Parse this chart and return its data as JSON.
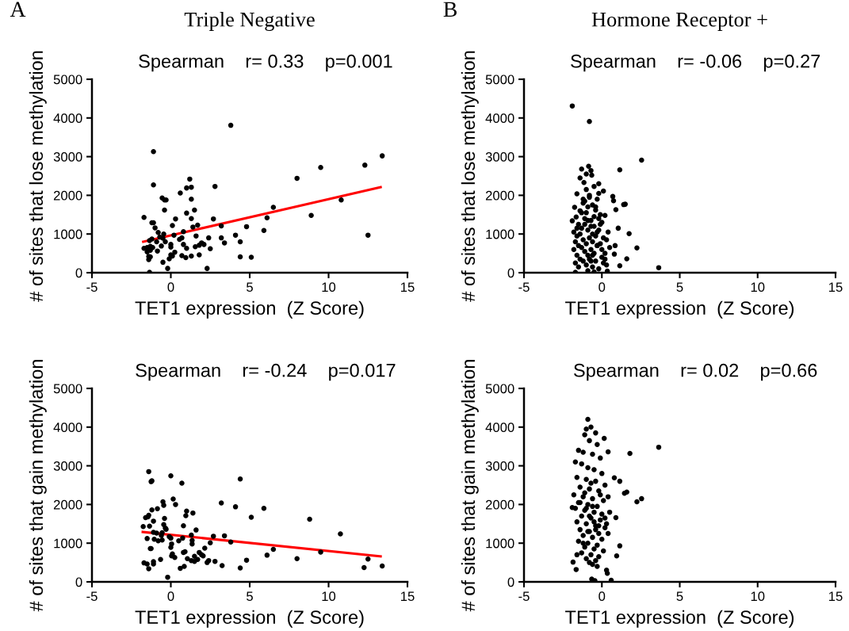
{
  "chart_data": [
    {
      "type": "scatter",
      "title": "Triple Negative",
      "xlabel": "TET1 expression  (Z Score)",
      "ylabel": "# of sites that lose methylation",
      "annotations": [
        "A",
        "Spearman    r= 0.33    p=0.001"
      ],
      "xlim": [
        -5,
        15
      ],
      "ylim": [
        0,
        5000
      ],
      "xticks": [
        -5,
        0,
        5,
        10,
        15
      ],
      "yticks": [
        0,
        1000,
        2000,
        3000,
        4000,
        5000
      ],
      "marker": "circle",
      "grid": false,
      "legend": false,
      "series": [
        {
          "color": "#000000",
          "x": [
            3.8,
            -1.1,
            13.4,
            12.3,
            9.5,
            8.0,
            1.2,
            -1.1,
            2.8,
            1.0,
            1.3,
            0.6,
            -0.55,
            -0.4,
            -0.3,
            1.3,
            10.8,
            -0.4,
            1.5,
            6.5,
            1.0,
            -1.7,
            0.3,
            1.3,
            2.7,
            6.1,
            8.9,
            -1.2,
            -1.1,
            0.1,
            1.4,
            1.7,
            3.2,
            4.8,
            -1.0,
            -0.8,
            5.9,
            -0.45,
            0.8,
            0.2,
            1.6,
            4.1,
            -0.7,
            -0.5,
            2.4,
            3.2,
            0.55,
            0.7,
            -1.35,
            -1.2,
            -0.9,
            -0.35,
            4.4,
            12.5,
            3.4,
            0.0,
            0.0,
            0.8,
            1.95,
            2.1,
            1.55,
            1.8,
            -0.6,
            -1.7,
            -1.5,
            -1.3,
            -1.15,
            1.0,
            2.5,
            -1.5,
            -1.3,
            -0.85,
            0.25,
            0.0,
            0.1,
            0.7,
            0.95,
            1.3,
            1.8,
            -1.4,
            -1.3,
            4.4,
            5.1,
            -1.4,
            -0.1,
            -0.5,
            -0.2,
            2.3,
            -1.35
          ],
          "values": [
            3810,
            3130,
            3020,
            2780,
            2720,
            2440,
            2420,
            2270,
            2230,
            2190,
            2210,
            2060,
            1930,
            1880,
            1880,
            1900,
            1880,
            1620,
            1620,
            1690,
            1540,
            1430,
            1390,
            1400,
            1390,
            1420,
            1480,
            1290,
            1290,
            1220,
            1180,
            1230,
            1210,
            1190,
            1160,
            1040,
            1090,
            1000,
            1060,
            970,
            950,
            970,
            920,
            890,
            900,
            900,
            860,
            900,
            830,
            870,
            800,
            800,
            800,
            970,
            770,
            730,
            660,
            730,
            770,
            730,
            670,
            710,
            690,
            630,
            650,
            680,
            650,
            630,
            620,
            540,
            580,
            560,
            530,
            460,
            430,
            440,
            390,
            430,
            460,
            420,
            410,
            410,
            400,
            340,
            360,
            270,
            110,
            110,
            10
          ]
        },
        {
          "type": "line",
          "marker": "none",
          "color": "#ff0000",
          "x": [
            -1.75,
            13.3
          ],
          "values": [
            800,
            2210
          ]
        }
      ]
    },
    {
      "type": "scatter",
      "xlabel": "TET1 expression  (Z Score)",
      "ylabel": "# of sites that gain methylation",
      "annotations": [
        "Spearman    r= -0.24    p=0.017"
      ],
      "xlim": [
        -5,
        15
      ],
      "ylim": [
        0,
        5000
      ],
      "xticks": [
        -5,
        0,
        5,
        10,
        15
      ],
      "yticks": [
        0,
        1000,
        2000,
        3000,
        4000,
        5000
      ],
      "marker": "circle",
      "grid": false,
      "legend": false,
      "series": [
        {
          "color": "#000000",
          "x": [
            -1.4,
            0.0,
            -1.25,
            -1.2,
            0.7,
            4.4,
            0.15,
            0.3,
            -0.5,
            -0.45,
            3.2,
            4.1,
            5.9,
            -1.2,
            -0.85,
            1.0,
            1.4,
            -1.4,
            -1.6,
            -1.45,
            0.95,
            5.1,
            -0.4,
            -1.1,
            8.8,
            -1.75,
            -1.35,
            -0.45,
            0.8,
            -0.35,
            -0.3,
            1.6,
            -1.1,
            -0.9,
            -0.55,
            10.75,
            1.3,
            -0.6,
            -0.1,
            0.0,
            2.7,
            3.4,
            -1.5,
            -1.05,
            -0.8,
            -0.55,
            0.5,
            0.75,
            1.35,
            1.35,
            2.5,
            3.8,
            0.05,
            0.0,
            -1.3,
            -1.25,
            2.15,
            6.5,
            0.8,
            0.9,
            1.8,
            9.5,
            0.1,
            0.25,
            0.05,
            1.95,
            2.05,
            6.1,
            1.5,
            -0.65,
            1.05,
            1.3,
            1.5,
            1.7,
            8.0,
            12.5,
            2.4,
            2.3,
            2.8,
            4.8,
            -1.7,
            -1.5,
            -1.1,
            -1.1,
            3.25,
            0.85,
            0.6,
            4.4,
            12.25,
            13.4,
            -1.4,
            -0.2
          ],
          "values": [
            2850,
            2740,
            2590,
            2610,
            2550,
            2660,
            2140,
            2000,
            2070,
            1980,
            2040,
            1940,
            1900,
            1860,
            1890,
            1830,
            1780,
            1720,
            1660,
            1680,
            1710,
            1670,
            1640,
            1570,
            1620,
            1430,
            1440,
            1480,
            1450,
            1390,
            1360,
            1340,
            1280,
            1260,
            1270,
            1240,
            1210,
            1200,
            1170,
            1130,
            1180,
            1190,
            1120,
            1100,
            1060,
            1080,
            1060,
            1130,
            1070,
            980,
            1010,
            1030,
            980,
            890,
            860,
            860,
            870,
            840,
            760,
            780,
            760,
            770,
            720,
            630,
            670,
            700,
            670,
            690,
            660,
            580,
            600,
            550,
            530,
            580,
            600,
            590,
            550,
            500,
            530,
            560,
            490,
            460,
            520,
            460,
            420,
            400,
            350,
            360,
            370,
            410,
            340,
            120
          ]
        },
        {
          "type": "line",
          "marker": "none",
          "color": "#ff0000",
          "x": [
            -1.78,
            13.3
          ],
          "values": [
            1290,
            660
          ]
        }
      ]
    },
    {
      "type": "scatter",
      "title": "Hormone Receptor +",
      "xlabel": "TET1 expression  (Z Score)",
      "ylabel": "# of sites that lose methylation",
      "annotations": [
        "B",
        "Spearman    r= -0.06    p=0.27"
      ],
      "xlim": [
        -5,
        15
      ],
      "ylim": [
        0,
        5000
      ],
      "xticks": [
        -5,
        0,
        5,
        10,
        15
      ],
      "yticks": [
        0,
        1000,
        2000,
        3000,
        4000,
        5000
      ],
      "marker": "circle",
      "grid": false,
      "legend": false,
      "series": [
        {
          "color": "#000000",
          "x": [
            -1.9,
            -0.8,
            2.55,
            1.15,
            3.65,
            1.75,
            2.25,
            1.6,
            1.15,
            1.4,
            1.5,
            0.9,
            1.05,
            0.85,
            0.8,
            0.7,
            0.75,
            0.1,
            -0.2,
            -1.7,
            0.35,
            -0.85,
            -1.3,
            -0.7,
            -0.65,
            -1.4,
            -1.0,
            -1.15,
            -0.5,
            -1.6,
            -0.8,
            -1.75,
            -1.9,
            -1.65,
            -1.2,
            -0.9,
            -0.6,
            -0.3,
            -1.5,
            -1.0,
            -0.4,
            -0.1,
            -1.8,
            -1.3,
            -0.7,
            -0.2,
            0.2,
            -1.6,
            -1.1,
            -0.5,
            0.0,
            0.4,
            -1.7,
            -1.4,
            -0.9,
            -0.6,
            -0.2,
            0.1,
            -1.5,
            -1.2,
            -0.8,
            -0.4,
            0.3,
            -1.8,
            -1.3,
            -1.0,
            -0.6,
            -0.1,
            0.5,
            -1.6,
            -1.1,
            -0.7,
            -0.3,
            0.2,
            -1.4,
            -0.9,
            -0.5,
            0.0,
            -1.7,
            -1.2,
            -0.8,
            -0.4,
            0.1,
            -1.5,
            -1.0,
            -0.6,
            -0.2,
            0.3,
            -1.3,
            -0.9,
            -0.5,
            -0.1,
            -1.6,
            -1.1,
            -0.7,
            -0.3,
            0.0,
            -1.2,
            -0.8,
            -0.4,
            -0.6,
            -1.0,
            -0.2,
            -0.9,
            -0.5,
            -1.4,
            -0.7,
            -0.3,
            0.2,
            -1.1
          ],
          "values": [
            4310,
            3910,
            2910,
            2660,
            130,
            1010,
            640,
            360,
            180,
            1760,
            1770,
            1630,
            1150,
            700,
            480,
            1970,
            1860,
            2110,
            2300,
            10,
            40,
            2750,
            2680,
            2640,
            2520,
            2450,
            2550,
            2330,
            2230,
            2040,
            1950,
            1690,
            1340,
            1440,
            1800,
            1700,
            1750,
            1900,
            1250,
            1550,
            1620,
            1500,
            1050,
            1150,
            1350,
            1400,
            1480,
            950,
            1250,
            1200,
            1300,
            1050,
            800,
            1000,
            1100,
            1000,
            1100,
            900,
            700,
            850,
            900,
            950,
            850,
            600,
            650,
            750,
            800,
            750,
            650,
            450,
            550,
            600,
            700,
            500,
            350,
            450,
            500,
            400,
            250,
            300,
            350,
            300,
            250,
            150,
            200,
            150,
            100,
            200,
            1550,
            1350,
            1450,
            1250,
            1150,
            1400,
            1200,
            1050,
            600,
            1900,
            2000,
            1700,
            450,
            2150,
            2050,
            50,
            20,
            1600,
            300,
            700,
            350,
            1850
          ]
        }
      ]
    },
    {
      "type": "scatter",
      "xlabel": "TET1 expression  (Z Score)",
      "ylabel": "# of sites that gain methylation",
      "annotations": [
        "Spearman    r= 0.02    p=0.66"
      ],
      "xlim": [
        -5,
        15
      ],
      "ylim": [
        0,
        5000
      ],
      "xticks": [
        -5,
        0,
        5,
        10,
        15
      ],
      "yticks": [
        0,
        1000,
        2000,
        3000,
        4000,
        5000
      ],
      "marker": "circle",
      "grid": false,
      "legend": false,
      "series": [
        {
          "color": "#000000",
          "x": [
            3.65,
            1.8,
            -0.9,
            2.55,
            2.25,
            0.9,
            1.15,
            0.8,
            0.4,
            0.15,
            1.45,
            1.6,
            0.95,
            1.15,
            0.6,
            -0.65,
            -0.45,
            -1.9,
            -1.85,
            -1.65,
            0.3,
            0.35,
            -1.0,
            -0.7,
            -0.4,
            -1.1,
            -0.8,
            -0.3,
            -1.5,
            -1.2,
            -0.6,
            -0.1,
            -1.7,
            -1.3,
            -0.9,
            -0.5,
            0.0,
            -1.6,
            -1.0,
            -0.4,
            0.2,
            -1.4,
            -0.8,
            -0.2,
            0.4,
            -1.8,
            -1.2,
            -0.6,
            0.1,
            -1.5,
            -0.9,
            -0.3,
            0.5,
            -1.7,
            -1.1,
            -0.5,
            0.0,
            -1.3,
            -0.7,
            -0.1,
            0.3,
            -1.6,
            -1.0,
            -0.4,
            0.2,
            -1.4,
            -0.8,
            -0.2,
            -1.2,
            -0.6,
            0.0,
            -1.5,
            -0.9,
            -0.3,
            -1.1,
            -0.5,
            0.1,
            -1.3,
            -0.7,
            -0.2,
            -1.0,
            -0.4,
            -0.8,
            -1.6,
            -0.6,
            -0.3,
            -1.2,
            -0.9,
            -0.5,
            0.4,
            -1.4,
            -0.7,
            -0.1,
            -1.0,
            -0.4,
            -0.8,
            -1.1,
            -0.6,
            -0.2,
            0.2
          ],
          "values": [
            3480,
            3320,
            4200,
            2150,
            2070,
            1660,
            2600,
            2690,
            3360,
            3710,
            2290,
            2320,
            670,
            930,
            40,
            70,
            30,
            1920,
            510,
            320,
            300,
            220,
            3950,
            4000,
            3850,
            3800,
            3650,
            3550,
            3400,
            3350,
            3300,
            3200,
            3100,
            3050,
            2950,
            2900,
            2800,
            2700,
            2650,
            2600,
            2500,
            2450,
            2400,
            2350,
            2200,
            2250,
            2200,
            2150,
            2100,
            2050,
            2000,
            1950,
            1800,
            1900,
            1850,
            1800,
            1750,
            1700,
            1650,
            1600,
            1500,
            1550,
            1500,
            1450,
            1400,
            1350,
            1300,
            1250,
            1200,
            1150,
            1100,
            1050,
            1000,
            950,
            900,
            850,
            800,
            750,
            700,
            650,
            600,
            550,
            500,
            700,
            450,
            400,
            1000,
            1300,
            1550,
            1250,
            2050,
            2550,
            2250,
            1900,
            1350,
            1700,
            2300,
            1950,
            1450,
            1650
          ]
        }
      ]
    }
  ]
}
